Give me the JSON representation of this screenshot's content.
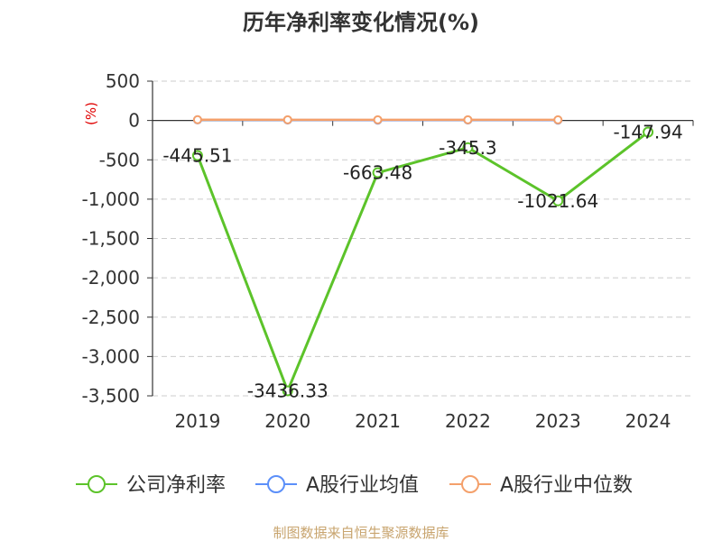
{
  "chart_data": {
    "type": "line",
    "title": "历年净利率变化情况(%)",
    "unit_label": "(%)",
    "categories": [
      "2019",
      "2020",
      "2021",
      "2022",
      "2023",
      "2024"
    ],
    "ylim": [
      -3500,
      500
    ],
    "yticks": [
      500,
      0,
      -500,
      -1000,
      -1500,
      -2000,
      -2500,
      -3000,
      -3500
    ],
    "ytick_labels": [
      "500",
      "0",
      "-500",
      "-1,000",
      "-1,500",
      "-2,000",
      "-2,500",
      "-3,000",
      "-3,500"
    ],
    "grid": true,
    "legend_position": "bottom",
    "series": [
      {
        "name": "公司净利率",
        "color": "#5cc32a",
        "values": [
          -445.51,
          -3436.33,
          -663.48,
          -345.3,
          -1021.64,
          -147.94
        ],
        "labels": [
          "-445.51",
          "-3436.33",
          "-663.48",
          "-345.3",
          "-1021.64",
          "-147.94"
        ],
        "show_labels": true
      },
      {
        "name": "A股行业均值",
        "color": "#5b8ff9",
        "values": [
          8,
          6,
          5,
          6,
          5,
          null
        ],
        "show_labels": false
      },
      {
        "name": "A股行业中位数",
        "color": "#f4a06b",
        "values": [
          10,
          9,
          9,
          9,
          8,
          null
        ],
        "show_labels": false
      }
    ]
  },
  "source": "制图数据来自恒生聚源数据库"
}
